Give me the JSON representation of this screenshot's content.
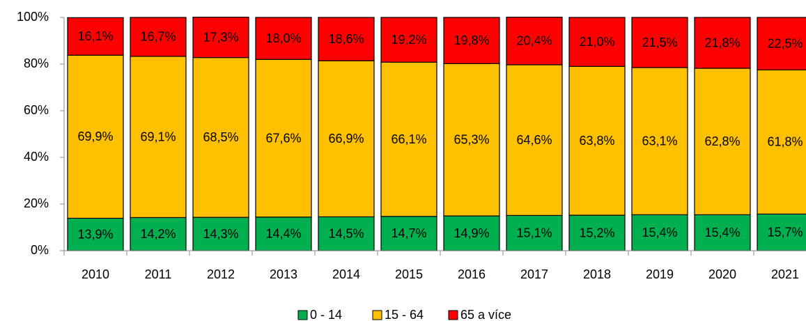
{
  "chart_data": {
    "type": "stacked_bar",
    "categories": [
      "2010",
      "2011",
      "2012",
      "2013",
      "2014",
      "2015",
      "2016",
      "2017",
      "2018",
      "2019",
      "2020",
      "2021"
    ],
    "series": [
      {
        "name": "0 - 14",
        "color": "#00b050",
        "values": [
          13.9,
          14.2,
          14.3,
          14.4,
          14.5,
          14.7,
          14.9,
          15.1,
          15.2,
          15.4,
          15.4,
          15.7
        ],
        "value_labels": [
          "13,9%",
          "14,2%",
          "14,3%",
          "14,4%",
          "14,5%",
          "14,7%",
          "14,9%",
          "15,1%",
          "15,2%",
          "15,4%",
          "15,4%",
          "15,7%"
        ]
      },
      {
        "name": "15 - 64",
        "color": "#ffc000",
        "values": [
          69.9,
          69.1,
          68.5,
          67.6,
          66.9,
          66.1,
          65.3,
          64.6,
          63.8,
          63.1,
          62.8,
          61.8
        ],
        "value_labels": [
          "69,9%",
          "69,1%",
          "68,5%",
          "67,6%",
          "66,9%",
          "66,1%",
          "65,3%",
          "64,6%",
          "63,8%",
          "63,1%",
          "62,8%",
          "61,8%"
        ]
      },
      {
        "name": "65 a více",
        "color": "#ff0000",
        "values": [
          16.1,
          16.7,
          17.3,
          18.0,
          18.6,
          19.2,
          19.8,
          20.4,
          21.0,
          21.5,
          21.8,
          22.5
        ],
        "value_labels": [
          "16,1%",
          "16,7%",
          "17,3%",
          "18,0%",
          "18,6%",
          "19,2%",
          "19,8%",
          "20,4%",
          "21,0%",
          "21,5%",
          "21,8%",
          "22,5%"
        ]
      }
    ],
    "ylim": [
      0,
      100
    ],
    "yticks": [
      {
        "value": 0,
        "label": "0%"
      },
      {
        "value": 20,
        "label": "20%"
      },
      {
        "value": 40,
        "label": "40%"
      },
      {
        "value": 60,
        "label": "60%"
      },
      {
        "value": 80,
        "label": "80%"
      },
      {
        "value": 100,
        "label": "100%"
      }
    ],
    "legend": "bottom"
  }
}
